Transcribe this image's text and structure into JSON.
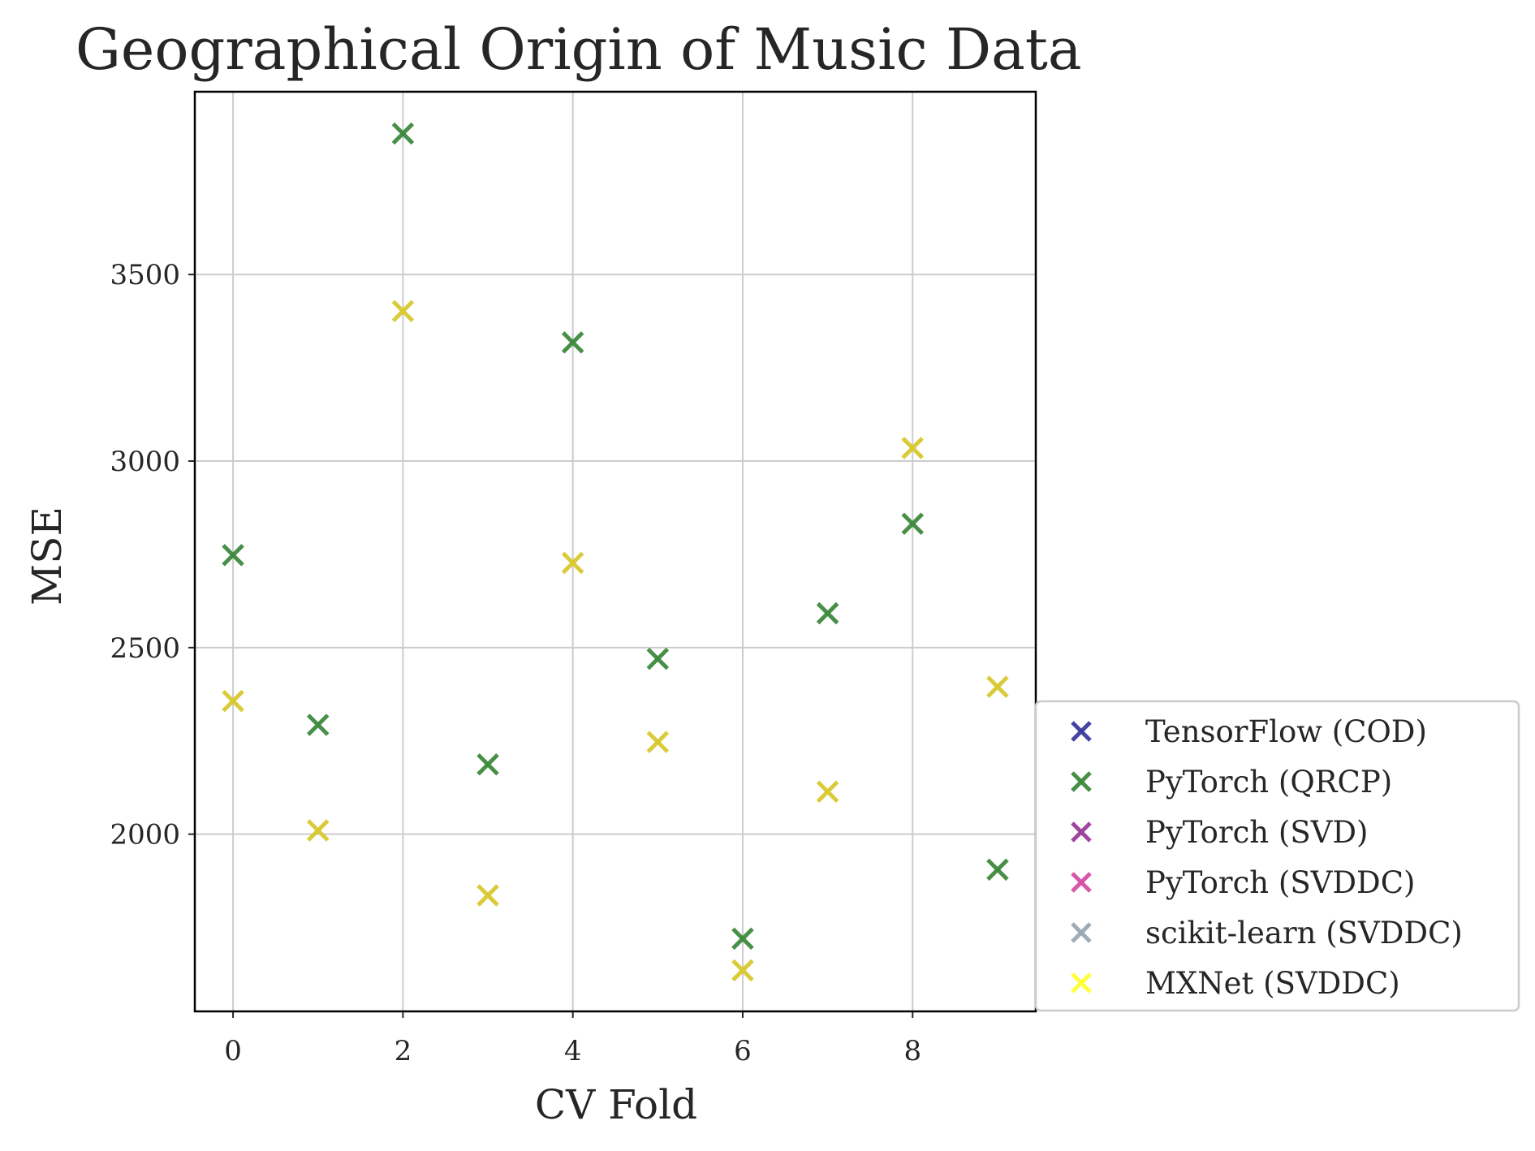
{
  "chart_data": {
    "type": "scatter",
    "title": "Geographical Origin of Music Data",
    "xlabel": "CV Fold",
    "ylabel": "MSE",
    "xlim": [
      -0.45,
      9.45
    ],
    "ylim": [
      1525,
      3990
    ],
    "xticks": [
      0,
      2,
      4,
      6,
      8
    ],
    "yticks": [
      2000,
      2500,
      3000,
      3500
    ],
    "grid": true,
    "marker": "x",
    "legend_position": "outside-right-bottom",
    "series": [
      {
        "name": "TensorFlow (COD)",
        "color": "#3b3ba0",
        "x": [],
        "y": []
      },
      {
        "name": "PyTorch (QRCP)",
        "color": "#3f8a3f",
        "x": [
          0,
          1,
          2,
          3,
          4,
          5,
          6,
          7,
          8,
          9
        ],
        "y": [
          2748,
          2293,
          3878,
          2187,
          3318,
          2470,
          1720,
          2592,
          2832,
          1905
        ]
      },
      {
        "name": "PyTorch (SVD)",
        "color": "#9a3f9a",
        "x": [],
        "y": []
      },
      {
        "name": "PyTorch (SVDDC)",
        "color": "#d64fa6",
        "x": [],
        "y": []
      },
      {
        "name": "scikit-learn (SVDDC)",
        "color": "#9aa8b5",
        "x": [],
        "y": []
      },
      {
        "name": "MXNet (SVDDC)",
        "color": "#ffff33",
        "x": [
          0,
          1,
          2,
          3,
          4,
          5,
          6,
          7,
          8,
          9
        ],
        "y": [
          2357,
          2010,
          3402,
          1836,
          2727,
          2247,
          1635,
          2114,
          3035,
          2395
        ]
      }
    ],
    "overlap_color": "#d9c930"
  }
}
